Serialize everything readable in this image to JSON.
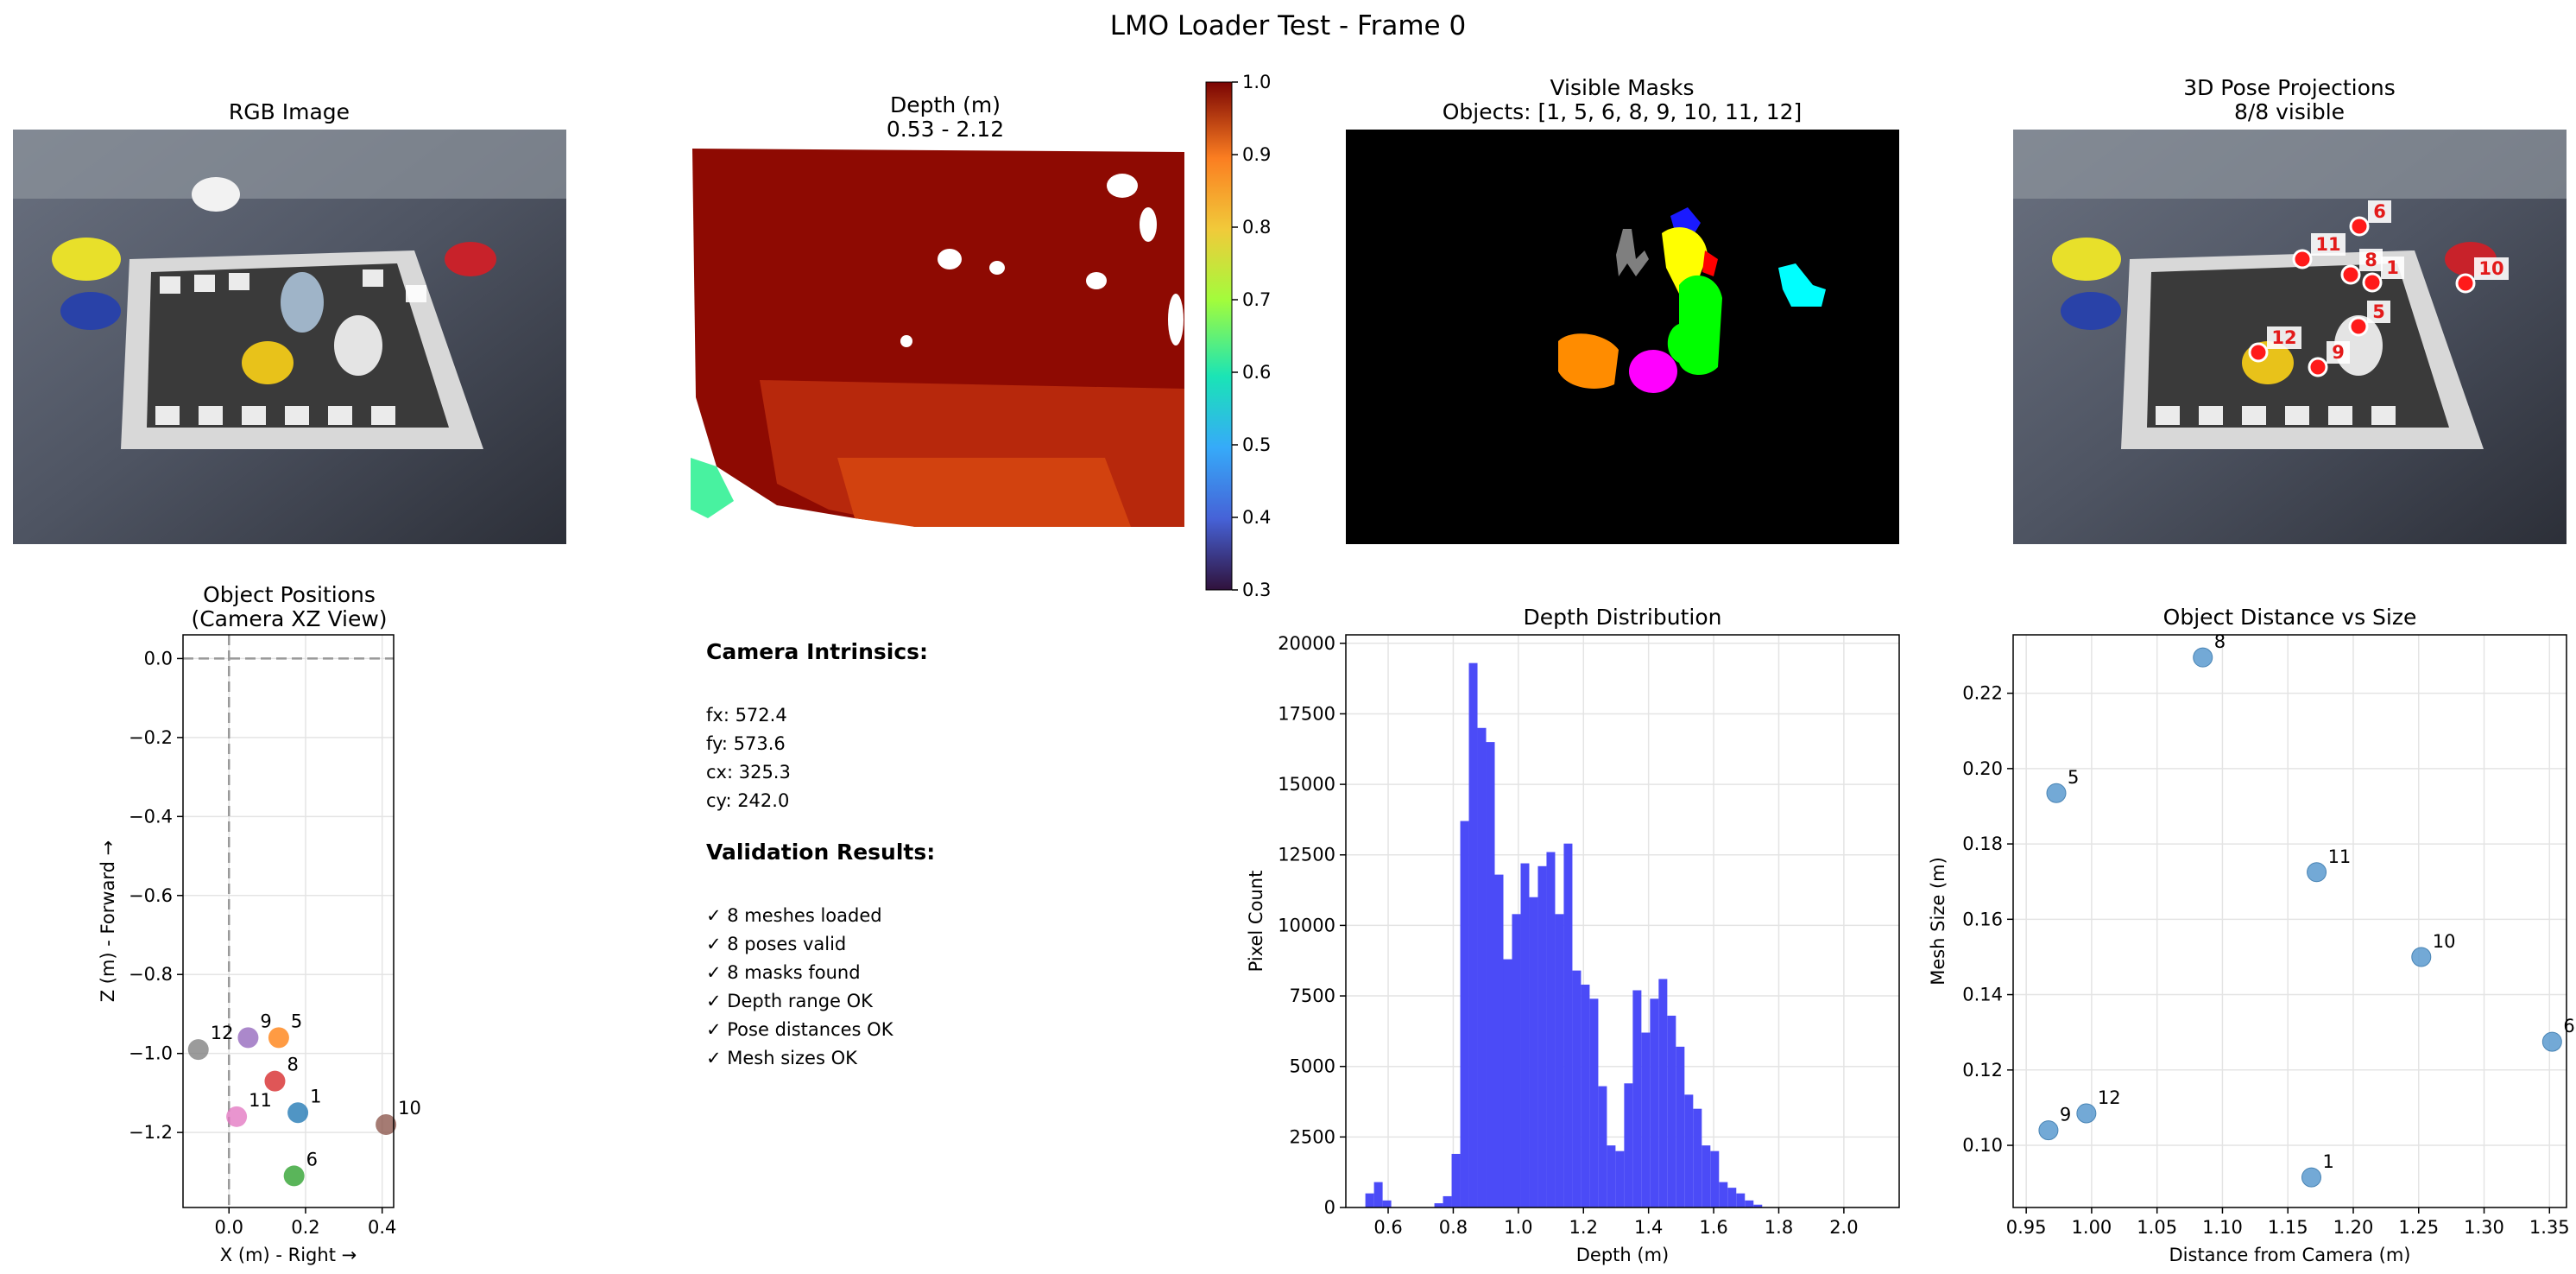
{
  "suptitle": "LMO Loader Test - Frame 0",
  "panels": {
    "rgb": {
      "title": "RGB Image"
    },
    "depth": {
      "title_line1": "Depth (m)",
      "title_line2": "0.53 - 2.12",
      "colorbar_ticks": [
        "0.3",
        "0.4",
        "0.5",
        "0.6",
        "0.7",
        "0.8",
        "0.9",
        "1.0"
      ]
    },
    "masks": {
      "title_line1": "Visible Masks",
      "title_line2": "Objects: [1, 5, 6, 8, 9, 10, 11, 12]"
    },
    "pose": {
      "title_line1": "3D Pose Projections",
      "title_line2": "8/8 visible",
      "markers": [
        "6",
        "11",
        "8",
        "1",
        "10",
        "5",
        "12",
        "9"
      ]
    },
    "info": {
      "camera_heading": "Camera Intrinsics:",
      "camera_lines": [
        "fx: 572.4",
        "fy: 573.6",
        "cx: 325.3",
        "cy: 242.0"
      ],
      "validation_heading": "Validation Results:",
      "validation_lines": [
        "✓ 8 meshes loaded",
        "✓ 8 poses valid",
        "✓ 8 masks found",
        "✓ Depth range OK",
        "✓ Pose distances OK",
        "✓ Mesh sizes OK"
      ]
    }
  },
  "colors": {
    "hist_bar": "#4b4bf7",
    "scatter_point": "#5b9bd0",
    "grid": "#e6e6e6"
  },
  "chart_data": [
    {
      "type": "scatter",
      "title": "Object Positions\n(Camera XZ View)",
      "xlabel": "X (m) - Right →",
      "ylabel": "Z (m) - Forward →",
      "xlim": [
        -0.12,
        0.43
      ],
      "ylim": [
        -1.39,
        0.06
      ],
      "xticks": [
        "0.0",
        "0.2",
        "0.4"
      ],
      "yticks": [
        "0.0",
        "−0.2",
        "−0.4",
        "−0.6",
        "−0.8",
        "−1.0",
        "−1.2"
      ],
      "grid": true,
      "reference_lines": {
        "x": 0,
        "y": 0
      },
      "points": [
        {
          "label": "1",
          "x": 0.18,
          "z": -1.15,
          "color": "#1f77b4"
        },
        {
          "label": "5",
          "x": 0.13,
          "z": -0.96,
          "color": "#ff7f0e"
        },
        {
          "label": "6",
          "x": 0.17,
          "z": -1.31,
          "color": "#2ca02c"
        },
        {
          "label": "8",
          "x": 0.12,
          "z": -1.07,
          "color": "#d62728"
        },
        {
          "label": "9",
          "x": 0.05,
          "z": -0.96,
          "color": "#9467bd"
        },
        {
          "label": "10",
          "x": 0.41,
          "z": -1.18,
          "color": "#8c564b"
        },
        {
          "label": "11",
          "x": 0.02,
          "z": -1.16,
          "color": "#e377c2"
        },
        {
          "label": "12",
          "x": -0.08,
          "z": -0.99,
          "color": "#7f7f7f"
        }
      ]
    },
    {
      "type": "bar",
      "title": "Depth Distribution",
      "xlabel": "Depth (m)",
      "ylabel": "Pixel Count",
      "xlim": [
        0.47,
        2.17
      ],
      "ylim": [
        0,
        20300
      ],
      "xticks": [
        "0.6",
        "0.8",
        "1.0",
        "1.2",
        "1.4",
        "1.6",
        "1.8",
        "2.0"
      ],
      "yticks": [
        "0",
        "2500",
        "5000",
        "7500",
        "10000",
        "12500",
        "15000",
        "17500",
        "20000"
      ],
      "grid": true,
      "bin_start": 0.53,
      "bin_width": 0.0265,
      "values": [
        500,
        900,
        250,
        0,
        0,
        0,
        0,
        0,
        150,
        400,
        1900,
        13700,
        19300,
        17000,
        16500,
        11800,
        8800,
        10400,
        12200,
        11000,
        12100,
        12600,
        10400,
        12900,
        8400,
        7900,
        7400,
        4300,
        2200,
        2000,
        4400,
        7700,
        6200,
        7400,
        8100,
        6800,
        5700,
        4000,
        3500,
        2200,
        2000,
        900,
        700,
        500,
        250,
        100
      ]
    },
    {
      "type": "scatter",
      "title": "Object Distance vs Size",
      "xlabel": "Distance from Camera (m)",
      "ylabel": "Mesh Size (m)",
      "xlim": [
        0.94,
        1.363
      ],
      "ylim": [
        0.0835,
        0.2355
      ],
      "xticks": [
        "0.95",
        "1.00",
        "1.05",
        "1.10",
        "1.15",
        "1.20",
        "1.25",
        "1.30",
        "1.35"
      ],
      "yticks": [
        "0.10",
        "0.12",
        "0.14",
        "0.16",
        "0.18",
        "0.20",
        "0.22"
      ],
      "grid": true,
      "points": [
        {
          "label": "8",
          "x": 1.085,
          "y": 0.2295
        },
        {
          "label": "5",
          "x": 0.973,
          "y": 0.1935
        },
        {
          "label": "11",
          "x": 1.172,
          "y": 0.1725
        },
        {
          "label": "10",
          "x": 1.252,
          "y": 0.15
        },
        {
          "label": "6",
          "x": 1.352,
          "y": 0.1275
        },
        {
          "label": "9",
          "x": 0.967,
          "y": 0.104
        },
        {
          "label": "12",
          "x": 0.996,
          "y": 0.1085
        },
        {
          "label": "1",
          "x": 1.168,
          "y": 0.0915
        }
      ]
    }
  ]
}
